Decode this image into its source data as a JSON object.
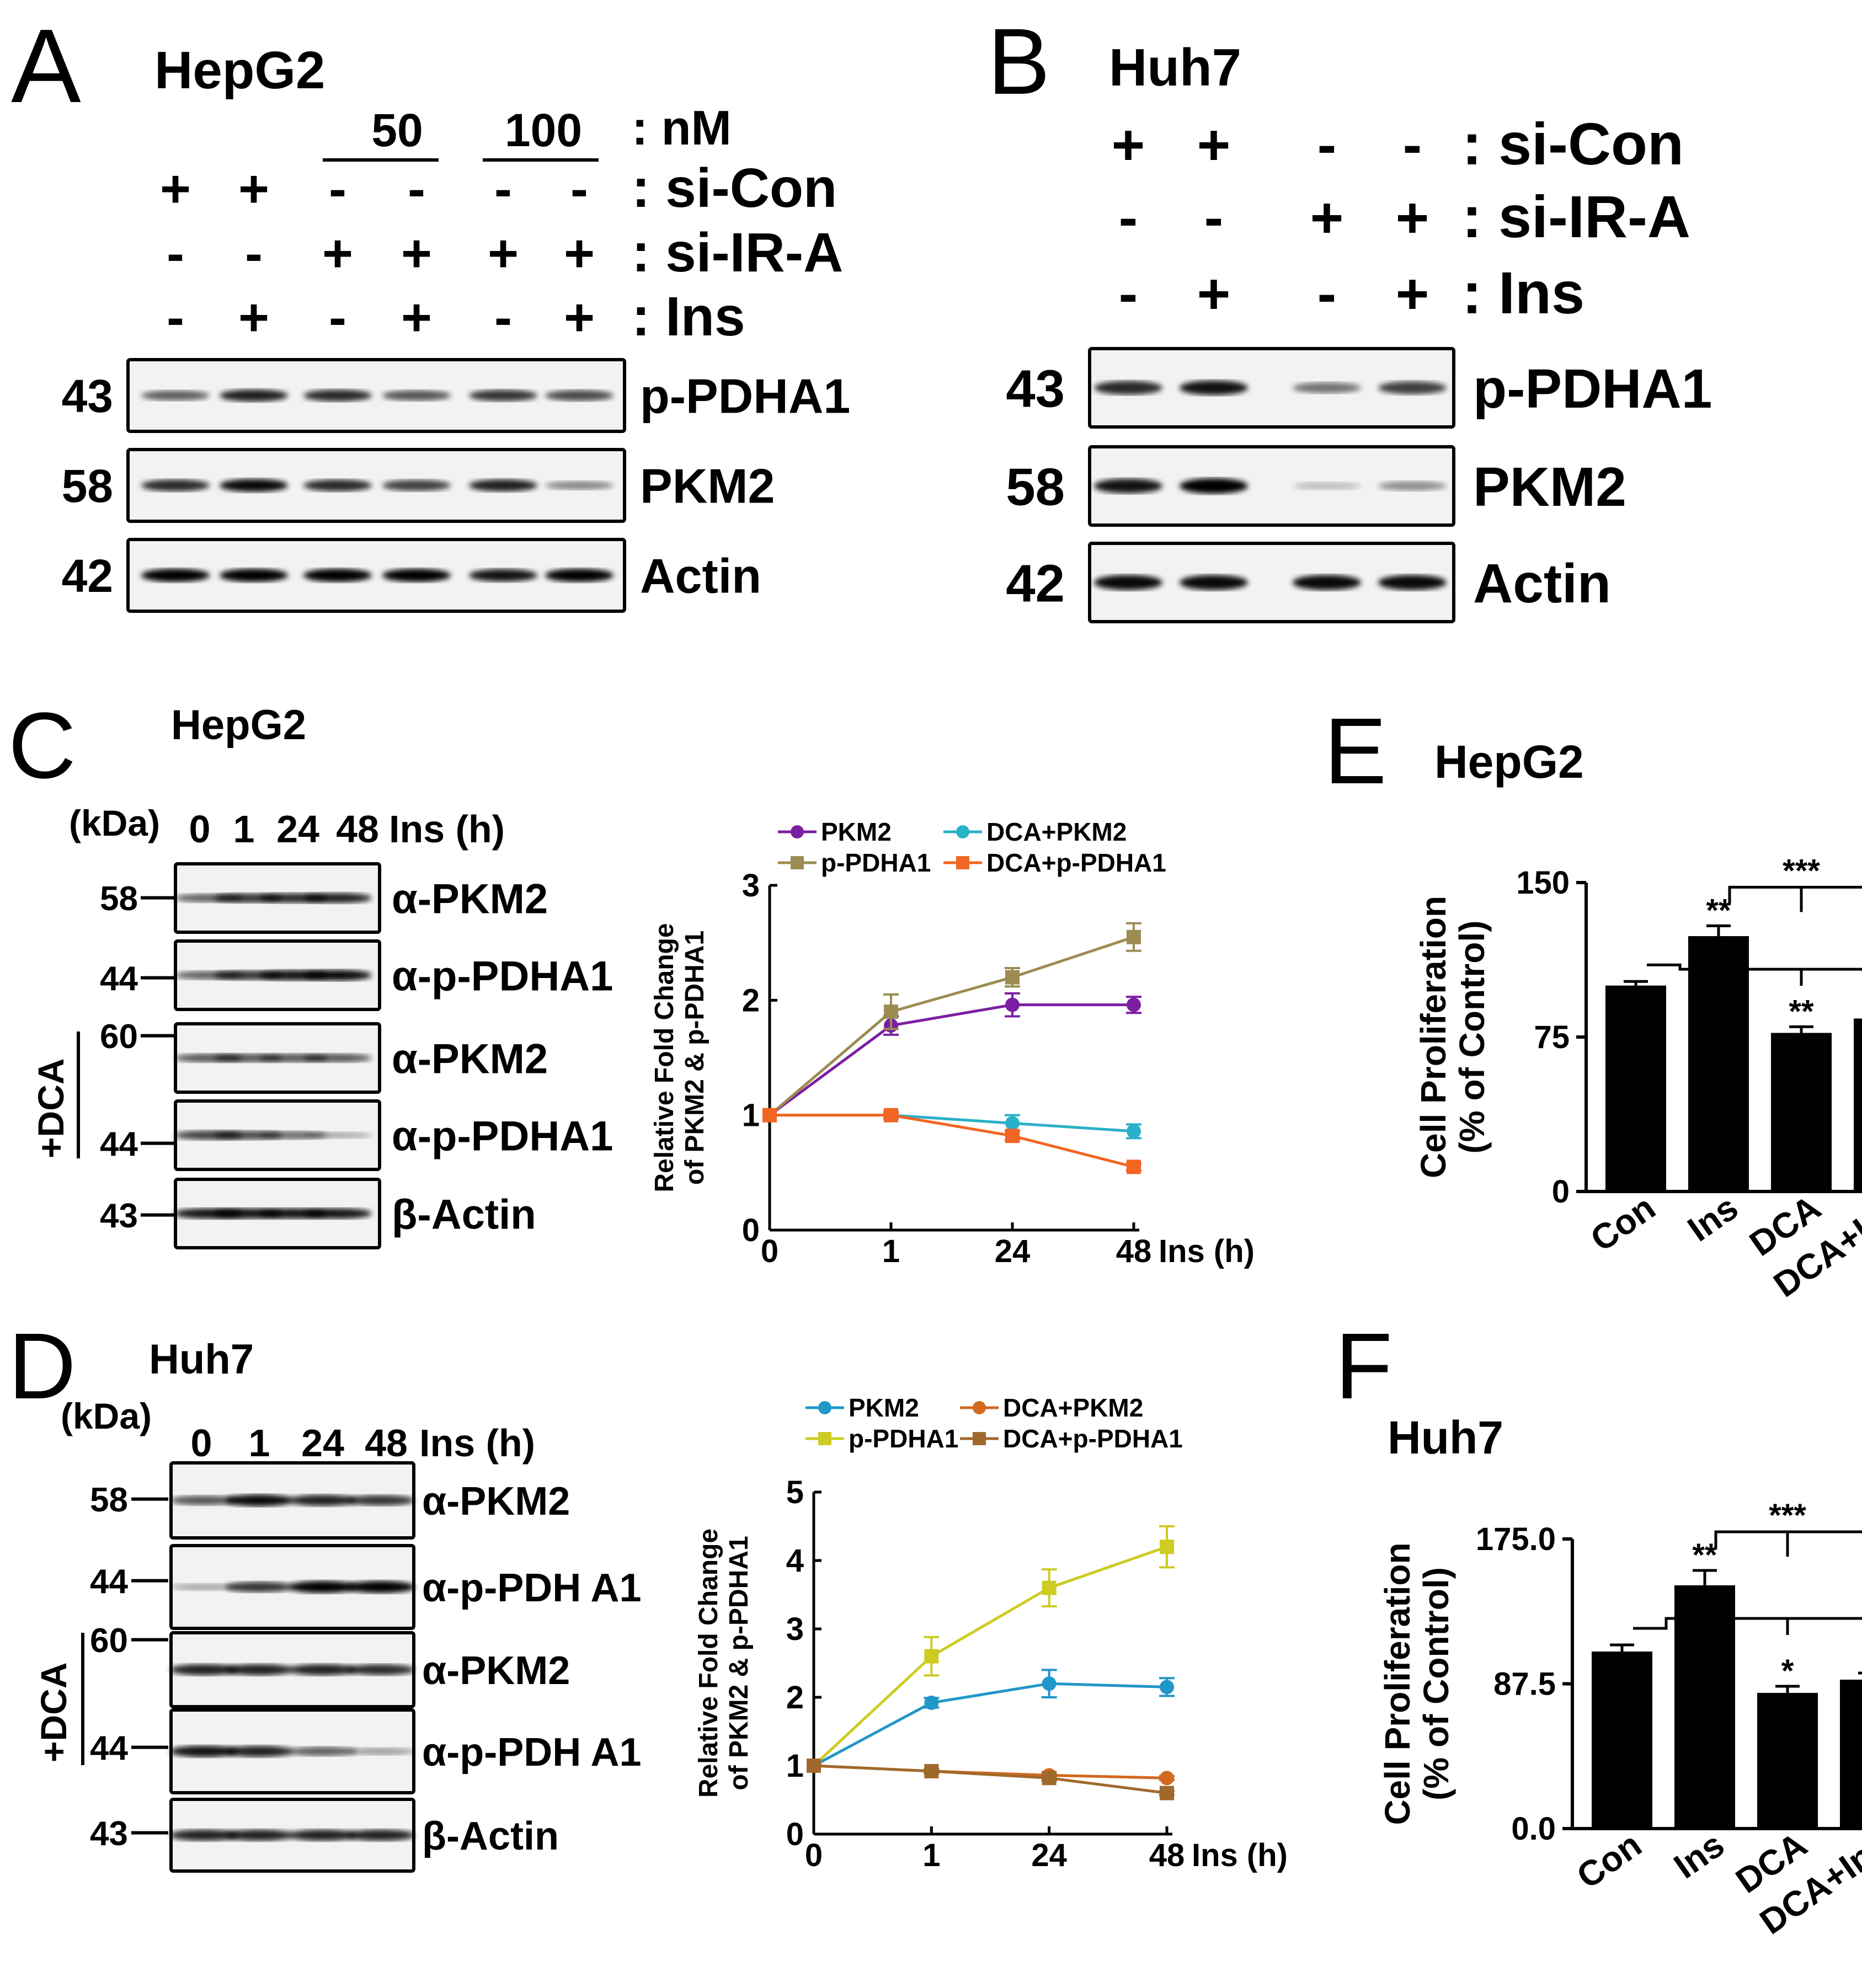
{
  "panelA": {
    "letter": "A",
    "cell_line": "HepG2",
    "dose_50": "50",
    "dose_100": "100",
    "row_labels": [
      ": nM",
      ": si-Con",
      ": si-IR-A",
      ": Ins"
    ],
    "signs": [
      [
        "+",
        "+",
        "-",
        "-",
        "-",
        "-"
      ],
      [
        "-",
        "-",
        "+",
        "+",
        "+",
        "+"
      ],
      [
        "-",
        "+",
        "-",
        "+",
        "-",
        "+"
      ]
    ],
    "blots": [
      {
        "kda": "43",
        "label": "p-PDHA1"
      },
      {
        "kda": "58",
        "label": "PKM2"
      },
      {
        "kda": "42",
        "label": "Actin"
      }
    ]
  },
  "panelB": {
    "letter": "B",
    "cell_line": "Huh7",
    "row_labels": [
      ": si-Con",
      ": si-IR-A",
      ": Ins"
    ],
    "signs": [
      [
        "+",
        "+",
        "-",
        "-"
      ],
      [
        "-",
        "-",
        "+",
        "+"
      ],
      [
        "-",
        "+",
        "-",
        "+"
      ]
    ],
    "blots": [
      {
        "kda": "43",
        "label": "p-PDHA1"
      },
      {
        "kda": "58",
        "label": "PKM2"
      },
      {
        "kda": "42",
        "label": "Actin"
      }
    ]
  },
  "panelC": {
    "letter": "C",
    "cell_line": "HepG2",
    "kda_header": "(kDa)",
    "times": [
      "0",
      "1",
      "24",
      "48"
    ],
    "time_unit": "Ins (h)",
    "dca_label": "+DCA",
    "blots": [
      {
        "kda": "58",
        "label": "α-PKM2"
      },
      {
        "kda": "44",
        "label": "α-p-PDHA1"
      },
      {
        "kda": "60",
        "label": "α-PKM2"
      },
      {
        "kda": "44",
        "label": "α-p-PDHA1"
      },
      {
        "kda": "43",
        "label": "β-Actin"
      }
    ]
  },
  "panelD": {
    "letter": "D",
    "cell_line": "Huh7",
    "kda_header": "(kDa)",
    "times": [
      "0",
      "1",
      "24",
      "48"
    ],
    "time_unit": "Ins (h)",
    "dca_label": "+DCA",
    "blots": [
      {
        "kda": "58",
        "label": "α-PKM2"
      },
      {
        "kda": "44",
        "label": "α-p-PDH A1"
      },
      {
        "kda": "60",
        "label": "α-PKM2"
      },
      {
        "kda": "44",
        "label": "α-p-PDH A1"
      },
      {
        "kda": "43",
        "label": "β-Actin"
      }
    ]
  },
  "panelE": {
    "letter": "E",
    "cell_line": "HepG2"
  },
  "panelF": {
    "letter": "F",
    "cell_line": "Huh7"
  },
  "chart_data": [
    {
      "panel": "C",
      "type": "line",
      "x": [
        "0",
        "1",
        "24",
        "48"
      ],
      "xlabel": "Ins (h)",
      "ylabel": [
        "Relative Fold Change",
        "of PKM2 & p-PDHA1"
      ],
      "ylim": [
        0,
        3
      ],
      "yticks": [
        "0",
        "1",
        "2",
        "3"
      ],
      "series": [
        {
          "name": "PKM2",
          "color": "#7b1fa2",
          "marker": "circle",
          "values": [
            1.0,
            1.78,
            1.96,
            1.96
          ],
          "errors": [
            0,
            0.08,
            0.1,
            0.07
          ]
        },
        {
          "name": "p-PDHA1",
          "color": "#9c8c52",
          "marker": "square",
          "values": [
            1.0,
            1.9,
            2.2,
            2.55
          ],
          "errors": [
            0,
            0.15,
            0.08,
            0.12
          ]
        },
        {
          "name": "DCA+PKM2",
          "color": "#2ab0c8",
          "marker": "circle",
          "values": [
            1.0,
            1.0,
            0.93,
            0.86
          ],
          "errors": [
            0,
            0.03,
            0.07,
            0.06
          ]
        },
        {
          "name": "DCA+p-PDHA1",
          "color": "#f26522",
          "marker": "square",
          "values": [
            1.0,
            1.0,
            0.82,
            0.55
          ],
          "errors": [
            0,
            0.02,
            0.04,
            0.03
          ]
        }
      ],
      "legend_order": [
        0,
        2,
        1,
        3
      ]
    },
    {
      "panel": "D",
      "type": "line",
      "x": [
        "0",
        "1",
        "24",
        "48"
      ],
      "xlabel": "Ins (h)",
      "ylabel": [
        "Relative Fold Change",
        "of PKM2 & p-PDHA1"
      ],
      "ylim": [
        0,
        5
      ],
      "yticks": [
        "0",
        "1",
        "2",
        "3",
        "4",
        "5"
      ],
      "series": [
        {
          "name": "PKM2",
          "color": "#2196c8",
          "marker": "circle",
          "values": [
            1.0,
            1.92,
            2.2,
            2.15
          ],
          "errors": [
            0,
            0.07,
            0.2,
            0.13
          ]
        },
        {
          "name": "p-PDHA1",
          "color": "#cccc22",
          "marker": "square",
          "values": [
            1.0,
            2.6,
            3.6,
            4.2
          ],
          "errors": [
            0,
            0.28,
            0.27,
            0.3
          ]
        },
        {
          "name": "DCA+PKM2",
          "color": "#d2691e",
          "marker": "circle",
          "values": [
            1.0,
            0.92,
            0.86,
            0.82
          ],
          "errors": [
            0,
            0.03,
            0.04,
            0.03
          ]
        },
        {
          "name": "DCA+p-PDHA1",
          "color": "#a0692c",
          "marker": "square",
          "values": [
            1.0,
            0.92,
            0.82,
            0.6
          ],
          "errors": [
            0,
            0.03,
            0.04,
            0.03
          ]
        }
      ],
      "legend_order": [
        0,
        2,
        1,
        3
      ]
    },
    {
      "panel": "E",
      "type": "bar",
      "categories": [
        "Con",
        "Ins",
        "DCA",
        "DCA+Ins"
      ],
      "values": [
        100,
        124,
        77,
        84
      ],
      "errors": [
        2,
        5,
        3,
        3
      ],
      "ylabel": [
        "Cell Proliferation",
        "(% of Control)"
      ],
      "ylim": [
        0,
        150
      ],
      "yticks": [
        "0",
        "75",
        "150"
      ],
      "stars": [
        "",
        "**",
        "**",
        "**"
      ],
      "bracket_stars": "***"
    },
    {
      "panel": "F",
      "type": "bar",
      "categories": [
        "Con",
        "Ins",
        "DCA",
        "DCA+Ins"
      ],
      "values": [
        107,
        147,
        82,
        90
      ],
      "errors": [
        4,
        9,
        4,
        4
      ],
      "ylabel": [
        "Cell Proliferation",
        "(% of Control)"
      ],
      "ylim": [
        0,
        175
      ],
      "yticks": [
        "0.0",
        "87.5",
        "175.0"
      ],
      "stars": [
        "",
        "**",
        "*",
        "*"
      ],
      "bracket_stars": "***"
    }
  ]
}
